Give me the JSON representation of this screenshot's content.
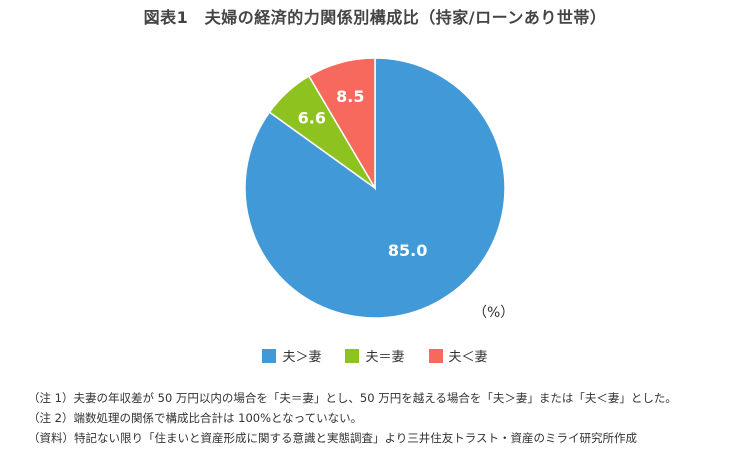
{
  "title": "図表1　夫婦の経済的力関係別構成比（持家/ローンあり世帯）",
  "unit_label": "（%）",
  "chart_data": {
    "type": "pie",
    "title": "図表1　夫婦の経済的力関係別構成比（持家/ローンあり世帯）",
    "categories": [
      "夫＞妻",
      "夫＝妻",
      "夫＜妻"
    ],
    "values": [
      85.0,
      6.6,
      8.5
    ],
    "value_labels": [
      "85.0",
      "6.6",
      "8.5"
    ],
    "colors": [
      "#4299d7",
      "#8dc21f",
      "#f8695d"
    ],
    "unit": "%",
    "legend_position": "bottom"
  },
  "notes": [
    "（注 1）夫妻の年収差が 50 万円以内の場合を「夫＝妻」とし、50 万円を越える場合を「夫＞妻」または「夫＜妻」とした。",
    "（注 2）端数処理の関係で構成比合計は 100%となっていない。",
    "（資料）特記ない限り「住まいと資産形成に関する意識と実態調査」より三井住友トラスト・資産のミライ研究所作成"
  ]
}
